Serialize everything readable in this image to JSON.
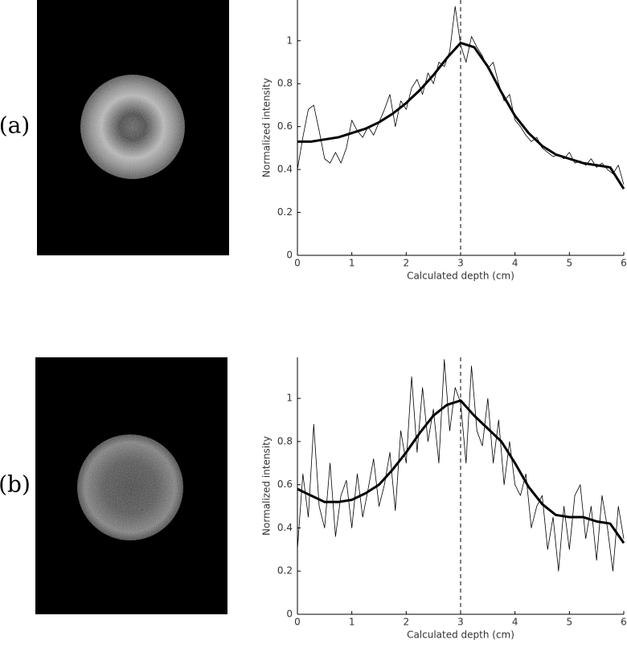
{
  "chart_data": [
    {
      "type": "line",
      "panel_label": "(a)",
      "xlabel": "Calculated depth (cm)",
      "ylabel": "Normalized intensity",
      "xlim": [
        0,
        6
      ],
      "ylim": [
        0,
        1.19
      ],
      "xticks": [
        0,
        1,
        2,
        3,
        4,
        5,
        6
      ],
      "yticks": [
        0,
        0.2,
        0.4,
        0.6,
        0.8,
        1
      ],
      "marker_x": 3,
      "series": [
        {
          "color": "#000000",
          "x": [
            0,
            0.1,
            0.2,
            0.3,
            0.4,
            0.5,
            0.6,
            0.7,
            0.8,
            0.9,
            1.0,
            1.1,
            1.2,
            1.3,
            1.4,
            1.5,
            1.6,
            1.7,
            1.8,
            1.9,
            2.0,
            2.1,
            2.2,
            2.3,
            2.4,
            2.5,
            2.6,
            2.7,
            2.8,
            2.9,
            3.0,
            3.1,
            3.2,
            3.3,
            3.4,
            3.5,
            3.6,
            3.7,
            3.8,
            3.9,
            4.0,
            4.1,
            4.2,
            4.3,
            4.4,
            4.5,
            4.6,
            4.7,
            4.8,
            4.9,
            5.0,
            5.1,
            5.2,
            5.3,
            5.4,
            5.5,
            5.6,
            5.7,
            5.8,
            5.9,
            6.0
          ],
          "values": [
            0.4,
            0.55,
            0.68,
            0.7,
            0.58,
            0.45,
            0.43,
            0.48,
            0.43,
            0.5,
            0.63,
            0.58,
            0.55,
            0.6,
            0.56,
            0.62,
            0.68,
            0.75,
            0.6,
            0.72,
            0.68,
            0.78,
            0.82,
            0.75,
            0.85,
            0.8,
            0.9,
            0.88,
            0.95,
            1.16,
            0.98,
            0.9,
            1.02,
            0.97,
            0.93,
            0.87,
            0.9,
            0.8,
            0.72,
            0.75,
            0.63,
            0.6,
            0.56,
            0.53,
            0.55,
            0.5,
            0.48,
            0.46,
            0.47,
            0.45,
            0.48,
            0.43,
            0.44,
            0.42,
            0.45,
            0.41,
            0.43,
            0.4,
            0.38,
            0.42,
            0.33
          ]
        },
        {
          "color": "#000000",
          "x": [
            0,
            0.25,
            0.5,
            0.75,
            1,
            1.25,
            1.5,
            1.75,
            2,
            2.25,
            2.5,
            2.75,
            3,
            3.25,
            3.5,
            3.75,
            4,
            4.25,
            4.5,
            4.75,
            5,
            5.25,
            5.5,
            5.75,
            6
          ],
          "values": [
            0.53,
            0.53,
            0.54,
            0.55,
            0.57,
            0.59,
            0.62,
            0.66,
            0.71,
            0.77,
            0.84,
            0.92,
            0.99,
            0.97,
            0.88,
            0.76,
            0.65,
            0.57,
            0.51,
            0.47,
            0.45,
            0.43,
            0.42,
            0.41,
            0.31
          ]
        }
      ]
    },
    {
      "type": "line",
      "panel_label": "(b)",
      "xlabel": "Calculated depth (cm)",
      "ylabel": "Normalized intensity",
      "xlim": [
        0,
        6
      ],
      "ylim": [
        0,
        1.19
      ],
      "xticks": [
        0,
        1,
        2,
        3,
        4,
        5,
        6
      ],
      "yticks": [
        0,
        0.2,
        0.4,
        0.6,
        0.8,
        1
      ],
      "marker_x": 3,
      "series": [
        {
          "color": "#000000",
          "x": [
            0,
            0.1,
            0.2,
            0.3,
            0.4,
            0.5,
            0.6,
            0.7,
            0.8,
            0.9,
            1.0,
            1.1,
            1.2,
            1.3,
            1.4,
            1.5,
            1.6,
            1.7,
            1.8,
            1.9,
            2.0,
            2.1,
            2.2,
            2.3,
            2.4,
            2.5,
            2.6,
            2.7,
            2.8,
            2.9,
            3.0,
            3.1,
            3.2,
            3.3,
            3.4,
            3.5,
            3.6,
            3.7,
            3.8,
            3.9,
            4.0,
            4.1,
            4.2,
            4.3,
            4.4,
            4.5,
            4.6,
            4.7,
            4.8,
            4.9,
            5.0,
            5.1,
            5.2,
            5.3,
            5.4,
            5.5,
            5.6,
            5.7,
            5.8,
            5.9,
            6.0
          ],
          "values": [
            0.3,
            0.65,
            0.45,
            0.88,
            0.5,
            0.4,
            0.7,
            0.36,
            0.55,
            0.62,
            0.4,
            0.65,
            0.45,
            0.58,
            0.72,
            0.5,
            0.6,
            0.75,
            0.48,
            0.85,
            0.7,
            1.1,
            0.75,
            1.05,
            0.8,
            0.95,
            0.7,
            1.18,
            0.85,
            1.05,
            0.98,
            0.7,
            1.15,
            0.85,
            0.78,
            1.0,
            0.7,
            0.9,
            0.6,
            0.8,
            0.6,
            0.55,
            0.65,
            0.4,
            0.5,
            0.55,
            0.3,
            0.45,
            0.2,
            0.5,
            0.3,
            0.55,
            0.6,
            0.35,
            0.5,
            0.25,
            0.55,
            0.4,
            0.2,
            0.5,
            0.35
          ]
        },
        {
          "color": "#000000",
          "x": [
            0,
            0.25,
            0.5,
            0.75,
            1,
            1.25,
            1.5,
            1.75,
            2,
            2.25,
            2.5,
            2.75,
            3,
            3.25,
            3.5,
            3.75,
            4,
            4.25,
            4.5,
            4.75,
            5,
            5.25,
            5.5,
            5.75,
            6
          ],
          "values": [
            0.58,
            0.55,
            0.52,
            0.52,
            0.53,
            0.56,
            0.6,
            0.67,
            0.75,
            0.84,
            0.92,
            0.97,
            0.99,
            0.92,
            0.86,
            0.8,
            0.7,
            0.59,
            0.51,
            0.46,
            0.45,
            0.45,
            0.43,
            0.42,
            0.33
          ]
        }
      ]
    }
  ]
}
